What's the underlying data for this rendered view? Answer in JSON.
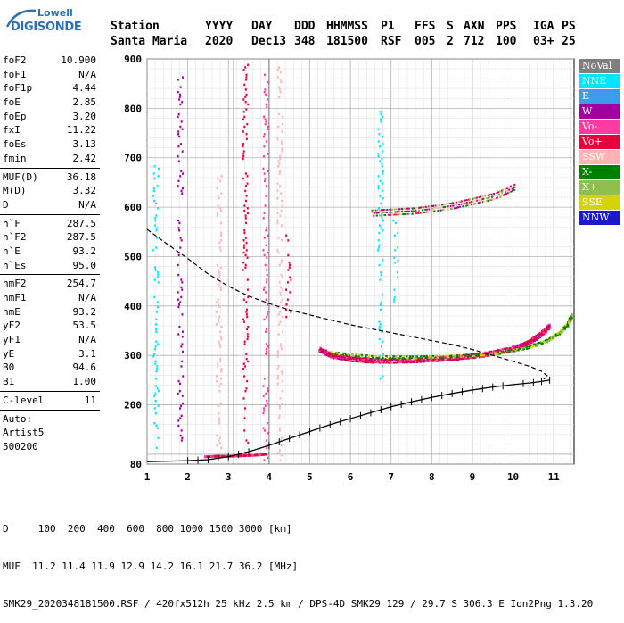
{
  "logo": {
    "line1": "Lowell",
    "line2": "DIGISONDE"
  },
  "header": {
    "labels": [
      "Station",
      "YYYY",
      "DAY",
      "DDD",
      "HHMMSS",
      "P1",
      "FFS",
      "S",
      "AXN",
      "PPS",
      "IGA",
      "PS"
    ],
    "values": [
      "Santa Maria",
      "2020",
      "Dec13",
      "348",
      "181500",
      "RSF",
      "005",
      "2",
      "712",
      "100",
      "03+",
      "25"
    ]
  },
  "params": {
    "group1": [
      {
        "label": "foF2",
        "value": "10.900"
      },
      {
        "label": "foF1",
        "value": "N/A"
      },
      {
        "label": "foF1p",
        "value": "4.44"
      },
      {
        "label": "foE",
        "value": "2.85"
      },
      {
        "label": "foEp",
        "value": "3.20"
      },
      {
        "label": "fxI",
        "value": "11.22"
      },
      {
        "label": "foEs",
        "value": "3.13"
      },
      {
        "label": "fmin",
        "value": "2.42"
      }
    ],
    "group2": [
      {
        "label": "MUF(D)",
        "value": "36.18"
      },
      {
        "label": "M(D)",
        "value": "3.32"
      },
      {
        "label": "D",
        "value": "N/A"
      }
    ],
    "group3": [
      {
        "label": "h`F",
        "value": "287.5"
      },
      {
        "label": "h`F2",
        "value": "287.5"
      },
      {
        "label": "h`E",
        "value": "93.2"
      },
      {
        "label": "h`Es",
        "value": "95.0"
      }
    ],
    "group4": [
      {
        "label": "hmF2",
        "value": "254.7"
      },
      {
        "label": "hmF1",
        "value": "N/A"
      },
      {
        "label": "hmE",
        "value": "93.2"
      },
      {
        "label": "yF2",
        "value": "53.5"
      },
      {
        "label": "yF1",
        "value": "N/A"
      },
      {
        "label": "yE",
        "value": "3.1"
      },
      {
        "label": "B0",
        "value": "94.6"
      },
      {
        "label": "B1",
        "value": "1.00"
      }
    ],
    "group5": [
      {
        "label": "C-level",
        "value": "11"
      }
    ],
    "auto": [
      "Auto:",
      "Artist5",
      "500200"
    ]
  },
  "legend": [
    {
      "label": "NoVal",
      "color": "#7f7f7f"
    },
    {
      "label": "NNE",
      "color": "#00e5ff"
    },
    {
      "label": "E",
      "color": "#3d9be9"
    },
    {
      "label": "W",
      "color": "#a000a0"
    },
    {
      "label": "Vo-",
      "color": "#ff3aa0"
    },
    {
      "label": "Vo+",
      "color": "#e8003a"
    },
    {
      "label": "SSW",
      "color": "#ffb3b3"
    },
    {
      "label": "X-",
      "color": "#008000"
    },
    {
      "label": "X+",
      "color": "#8fbf4f"
    },
    {
      "label": "SSE",
      "color": "#d4d400"
    },
    {
      "label": "NNW",
      "color": "#1a1acc"
    }
  ],
  "footer": {
    "line1": "D     100  200  400  600  800 1000 1500 3000 [km]",
    "line2": "MUF  11.2 11.4 11.9 12.9 14.2 16.1 21.7 36.2 [MHz]",
    "line3": "SMK29_2020348181500.RSF / 420fx512h 25 kHz 2.5 km / DPS-4D SMK29 129 / 29.7 S 306.3 E Ion2Png 1.3.20"
  },
  "chart_data": {
    "type": "scatter",
    "xlim": [
      1,
      11.5
    ],
    "ylim": [
      80,
      900
    ],
    "x_ticks": [
      1,
      2,
      3,
      4,
      5,
      6,
      7,
      8,
      9,
      10,
      11
    ],
    "y_ticks": [
      80,
      100,
      200,
      300,
      400,
      500,
      600,
      700,
      800,
      900
    ],
    "y_tick_labels": [
      "80",
      "",
      "200",
      "300",
      "400",
      "500",
      "600",
      "700",
      "800",
      "900"
    ],
    "grid": true,
    "vertical_markers": [
      3.13,
      4.0
    ],
    "f_trace_O": {
      "x": [
        5.2,
        5.5,
        6.0,
        6.5,
        7.0,
        7.5,
        8.0,
        8.5,
        9.0,
        9.5,
        10.0,
        10.3,
        10.6,
        10.85
      ],
      "y": [
        312,
        300,
        293,
        290,
        290,
        291,
        293,
        296,
        300,
        306,
        315,
        325,
        340,
        360
      ]
    },
    "f_trace_X": {
      "x": [
        5.5,
        6.5,
        7.5,
        8.5,
        9.5,
        10.3,
        10.8,
        11.1,
        11.3,
        11.4
      ],
      "y": [
        305,
        297,
        296,
        298,
        303,
        315,
        330,
        345,
        362,
        382
      ]
    },
    "f_spread_upper": {
      "x": [
        6.5,
        7.0,
        7.5,
        8.0,
        8.5,
        9.0,
        9.5,
        10.0
      ],
      "y": [
        588,
        590,
        592,
        597,
        603,
        612,
        622,
        640
      ]
    },
    "es_trace": {
      "x": [
        2.4,
        2.7,
        3.0,
        3.3,
        3.6,
        3.9
      ],
      "y": [
        94,
        95,
        95,
        96,
        97,
        99
      ]
    },
    "profile_dashed": {
      "x": [
        1.0,
        1.5,
        2.0,
        2.5,
        3.0,
        3.5,
        4.0,
        4.5,
        5.0,
        5.5,
        6.0,
        6.5,
        7.0,
        7.5,
        8.0,
        8.5,
        9.0,
        9.5,
        10.0,
        10.4,
        10.7,
        10.85,
        10.75
      ],
      "y": [
        555,
        525,
        496,
        465,
        440,
        420,
        405,
        392,
        382,
        372,
        362,
        354,
        346,
        338,
        330,
        322,
        312,
        300,
        288,
        278,
        268,
        258,
        252
      ]
    },
    "profile_solid": {
      "x": [
        1.0,
        2.0,
        2.5,
        3.0,
        3.5,
        4.0,
        4.5,
        5.0,
        5.5,
        6.0,
        6.5,
        7.0,
        7.5,
        8.0,
        8.5,
        9.0,
        9.5,
        10.0,
        10.5,
        10.9
      ],
      "y": [
        85,
        87,
        89,
        95,
        105,
        118,
        132,
        146,
        160,
        172,
        184,
        196,
        206,
        215,
        223,
        230,
        236,
        241,
        245,
        250
      ]
    },
    "spread_columns": [
      {
        "x": 1.2,
        "y0": 110,
        "y1": 700,
        "color": "#00e5ff"
      },
      {
        "x": 1.8,
        "y0": 130,
        "y1": 870,
        "color": "#a000a0"
      },
      {
        "x": 2.75,
        "y0": 110,
        "y1": 680,
        "color": "#ffb3b3"
      },
      {
        "x": 3.4,
        "y0": 100,
        "y1": 900,
        "color": "#e8003a"
      },
      {
        "x": 3.9,
        "y0": 85,
        "y1": 880,
        "color": "#ff3aa0"
      },
      {
        "x": 4.25,
        "y0": 90,
        "y1": 900,
        "color": "#ffb3b3"
      },
      {
        "x": 4.45,
        "y0": 380,
        "y1": 560,
        "color": "#e8003a"
      },
      {
        "x": 6.72,
        "y0": 240,
        "y1": 800,
        "color": "#00e5ff"
      },
      {
        "x": 7.1,
        "y0": 400,
        "y1": 580,
        "color": "#00e5ff"
      }
    ]
  }
}
